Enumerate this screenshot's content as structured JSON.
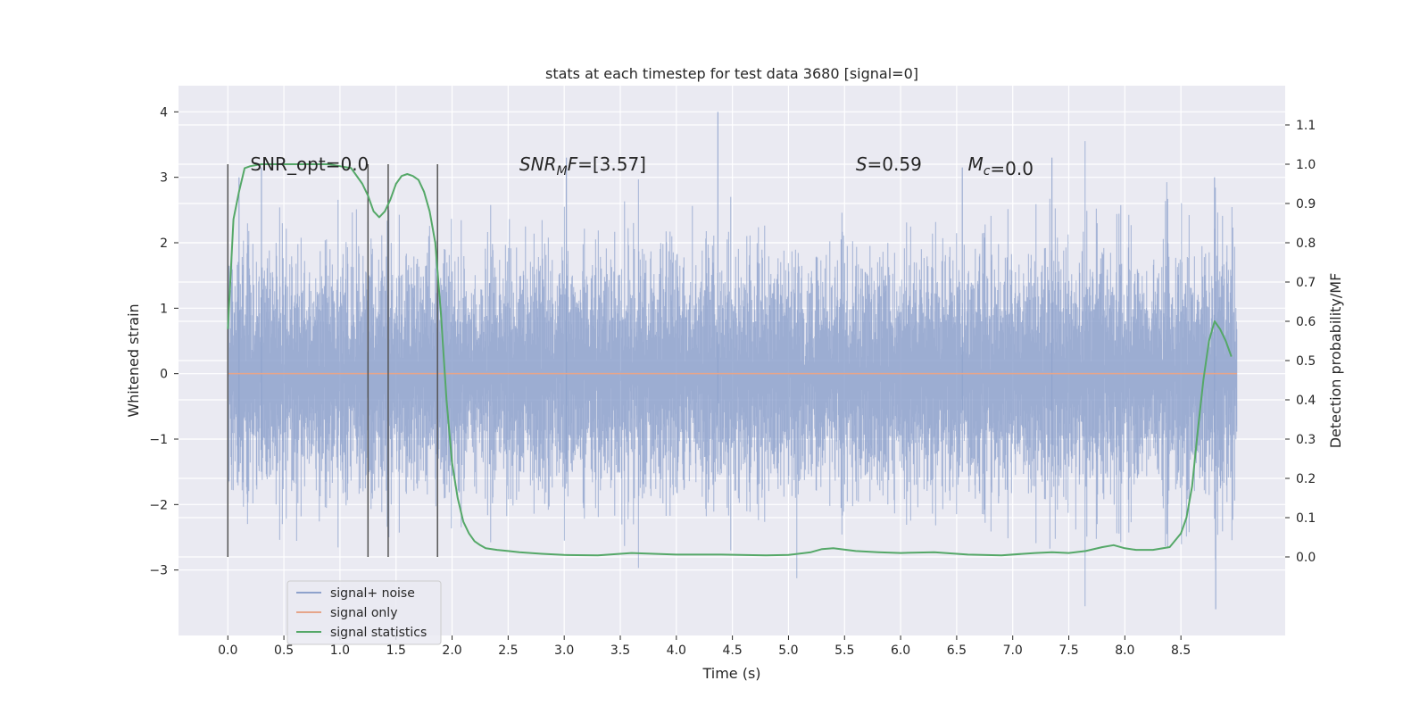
{
  "chart_data": {
    "type": "line",
    "title": "stats at each timestep for test data 3680 [signal=0]",
    "xlabel": "Time (s)",
    "ylabel_left": "Whitened strain",
    "ylabel_right": "Detection probability/MF",
    "xlim": [
      -0.44,
      9.43
    ],
    "ylim_left": [
      -4.0,
      4.4
    ],
    "ylim_right": [
      -0.2,
      1.2
    ],
    "x_ticks": [
      0.0,
      0.5,
      1.0,
      1.5,
      2.0,
      2.5,
      3.0,
      3.5,
      4.0,
      4.5,
      5.0,
      5.5,
      6.0,
      6.5,
      7.0,
      7.5,
      8.0,
      8.5
    ],
    "x_tick_labels": [
      "0.0",
      "0.5",
      "1.0",
      "1.5",
      "2.0",
      "2.5",
      "3.0",
      "3.5",
      "4.0",
      "4.5",
      "5.0",
      "5.5",
      "6.0",
      "6.5",
      "7.0",
      "7.5",
      "8.0",
      "8.5"
    ],
    "y_left_ticks": [
      -3,
      -2,
      -1,
      0,
      1,
      2,
      3,
      4
    ],
    "y_left_tick_labels": [
      "−3",
      "−2",
      "−1",
      "0",
      "1",
      "2",
      "3",
      "4"
    ],
    "y_right_ticks": [
      0.0,
      0.1,
      0.2,
      0.3,
      0.4,
      0.5,
      0.6,
      0.7,
      0.8,
      0.9,
      1.0,
      1.1
    ],
    "y_right_tick_labels": [
      "0.0",
      "0.1",
      "0.2",
      "0.3",
      "0.4",
      "0.5",
      "0.6",
      "0.7",
      "0.8",
      "0.9",
      "1.0",
      "1.1"
    ],
    "grid": true,
    "legend_position": "lower-left",
    "series": [
      {
        "name": "signal+ noise",
        "axis": "left",
        "color": "#8ea2cc",
        "x_range": [
          0.0,
          9.0
        ],
        "envelope_p99": [
          -2.1,
          2.1
        ],
        "peak_max": 4.0,
        "peak_min": -3.6
      },
      {
        "name": "signal only",
        "axis": "left",
        "color": "#e6a58a",
        "x": [
          0.0,
          9.0
        ],
        "y": [
          0.0,
          0.0
        ]
      },
      {
        "name": "signal statistics",
        "axis": "right",
        "color": "#55a868",
        "x": [
          0.0,
          0.05,
          0.1,
          0.15,
          0.2,
          0.3,
          0.5,
          0.7,
          0.9,
          1.0,
          1.1,
          1.2,
          1.25,
          1.3,
          1.35,
          1.4,
          1.45,
          1.5,
          1.55,
          1.6,
          1.65,
          1.7,
          1.75,
          1.8,
          1.85,
          1.9,
          1.95,
          2.0,
          2.05,
          2.1,
          2.15,
          2.2,
          2.25,
          2.3,
          2.4,
          2.5,
          2.6,
          2.8,
          3.0,
          3.3,
          3.6,
          3.8,
          4.0,
          4.4,
          4.8,
          5.0,
          5.2,
          5.3,
          5.4,
          5.6,
          5.8,
          6.0,
          6.3,
          6.6,
          6.9,
          7.2,
          7.35,
          7.5,
          7.65,
          7.8,
          7.9,
          8.0,
          8.1,
          8.25,
          8.4,
          8.5,
          8.55,
          8.6,
          8.65,
          8.7,
          8.75,
          8.8,
          8.85,
          8.9,
          8.95
        ],
        "y": [
          0.58,
          0.86,
          0.93,
          0.99,
          0.995,
          1.0,
          1.0,
          1.0,
          1.0,
          0.995,
          0.99,
          0.95,
          0.92,
          0.88,
          0.865,
          0.88,
          0.91,
          0.95,
          0.97,
          0.975,
          0.97,
          0.96,
          0.93,
          0.88,
          0.8,
          0.62,
          0.4,
          0.24,
          0.15,
          0.09,
          0.06,
          0.04,
          0.03,
          0.022,
          0.018,
          0.015,
          0.012,
          0.008,
          0.005,
          0.004,
          0.01,
          0.008,
          0.006,
          0.006,
          0.004,
          0.005,
          0.012,
          0.02,
          0.022,
          0.015,
          0.012,
          0.01,
          0.012,
          0.006,
          0.004,
          0.01,
          0.012,
          0.01,
          0.015,
          0.025,
          0.03,
          0.022,
          0.018,
          0.018,
          0.025,
          0.06,
          0.1,
          0.18,
          0.32,
          0.45,
          0.55,
          0.6,
          0.58,
          0.55,
          0.51
        ]
      }
    ],
    "vlines": {
      "color": "#555555",
      "x": [
        0.0,
        1.25,
        1.43,
        1.87
      ],
      "ymin": -2.8,
      "ymax": 3.2
    },
    "annotations": [
      {
        "x": 0.2,
        "y": 3.2,
        "prefix": "SNR_opt",
        "sub": "",
        "value": "=0.0",
        "italic": false
      },
      {
        "x": 2.6,
        "y": 3.2,
        "prefix": "SNR",
        "sub": "M",
        "suffix": "F",
        "value": "=[3.57]",
        "italic": true
      },
      {
        "x": 5.6,
        "y": 3.2,
        "prefix": "S",
        "sub": "",
        "value": "=0.59",
        "italic": true
      },
      {
        "x": 6.6,
        "y": 3.2,
        "prefix": "M",
        "sub": "c",
        "value": "=0.0",
        "italic": true
      }
    ]
  }
}
